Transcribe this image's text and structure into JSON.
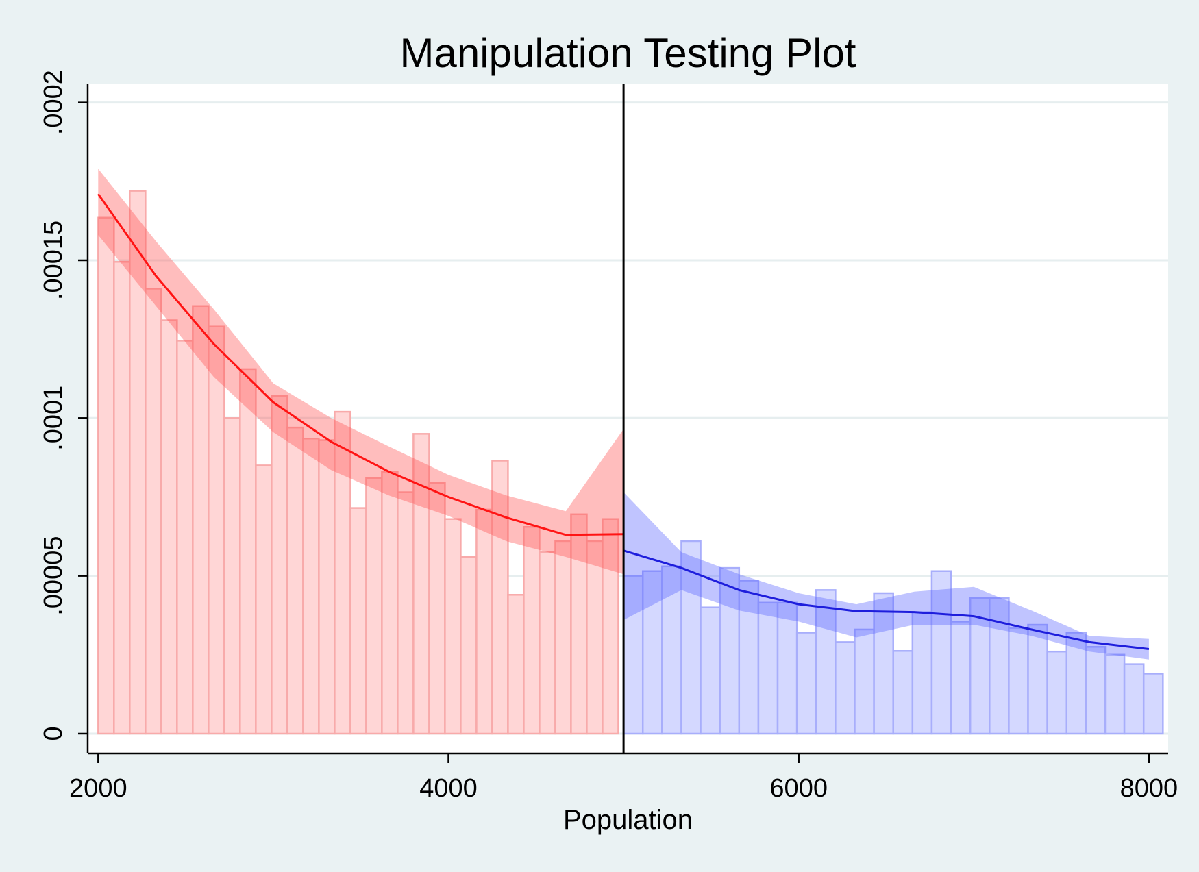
{
  "chart_data": {
    "type": "bar",
    "title": "Manipulation Testing Plot",
    "xlabel": "Population",
    "ylabel": "",
    "xlim": [
      1940,
      8110
    ],
    "ylim": [
      -6.3e-06,
      0.000206
    ],
    "x_ticks": [
      2000,
      4000,
      6000,
      8000
    ],
    "x_tick_labels": [
      "2000",
      "4000",
      "6000",
      "8000"
    ],
    "y_ticks": [
      0,
      5e-05,
      0.0001,
      0.00015,
      0.0002
    ],
    "y_tick_labels": [
      "0",
      ".00005",
      ".0001",
      ".00015",
      ".0002"
    ],
    "grid": true,
    "cutoff": 5000,
    "colors": {
      "left_bar_fill": "#ffd6d6",
      "left_bar_stroke": "#f8aaaa",
      "left_band": "#ff5252",
      "left_line": "#ff1414",
      "right_bar_fill": "#d4d8ff",
      "right_bar_stroke": "#a8aefb",
      "right_band": "#5a65ff",
      "right_line": "#1e1edc",
      "cutoff_line": "#000000"
    },
    "series": [
      {
        "side": "left",
        "bin_width": 90,
        "bins": [
          {
            "x0": 2000,
            "value": 0.0001635
          },
          {
            "x0": 2090,
            "value": 0.0001495
          },
          {
            "x0": 2180,
            "value": 0.000172
          },
          {
            "x0": 2270,
            "value": 0.000141
          },
          {
            "x0": 2360,
            "value": 0.000131
          },
          {
            "x0": 2450,
            "value": 0.0001245
          },
          {
            "x0": 2540,
            "value": 0.0001355
          },
          {
            "x0": 2630,
            "value": 0.000129
          },
          {
            "x0": 2720,
            "value": 0.0001
          },
          {
            "x0": 2810,
            "value": 0.0001155
          },
          {
            "x0": 2900,
            "value": 8.5e-05
          },
          {
            "x0": 2990,
            "value": 0.000107
          },
          {
            "x0": 3080,
            "value": 9.7e-05
          },
          {
            "x0": 3170,
            "value": 9.35e-05
          },
          {
            "x0": 3260,
            "value": 9.3e-05
          },
          {
            "x0": 3350,
            "value": 0.000102
          },
          {
            "x0": 3440,
            "value": 7.15e-05
          },
          {
            "x0": 3530,
            "value": 8.1e-05
          },
          {
            "x0": 3620,
            "value": 8.3e-05
          },
          {
            "x0": 3710,
            "value": 7.65e-05
          },
          {
            "x0": 3800,
            "value": 9.5e-05
          },
          {
            "x0": 3890,
            "value": 7.95e-05
          },
          {
            "x0": 3980,
            "value": 6.8e-05
          },
          {
            "x0": 4070,
            "value": 5.6e-05
          },
          {
            "x0": 4160,
            "value": 7.1e-05
          },
          {
            "x0": 4250,
            "value": 8.65e-05
          },
          {
            "x0": 4340,
            "value": 4.4e-05
          },
          {
            "x0": 4430,
            "value": 6.55e-05
          },
          {
            "x0": 4520,
            "value": 5.75e-05
          },
          {
            "x0": 4610,
            "value": 6.1e-05
          },
          {
            "x0": 4700,
            "value": 6.95e-05
          },
          {
            "x0": 4790,
            "value": 6.1e-05
          },
          {
            "x0": 4880,
            "value": 6.8e-05
          }
        ],
        "fit": {
          "x": [
            2000,
            2330,
            2660,
            3000,
            3330,
            3660,
            4000,
            4330,
            4670,
            5000
          ],
          "y": [
            0.000171,
            0.000145,
            0.0001235,
            0.000105,
            9.25e-05,
            8.3e-05,
            7.5e-05,
            6.85e-05,
            6.3e-05,
            6.32e-05
          ],
          "ci_low": [
            0.000158,
            0.0001355,
            0.000113,
            9.55e-05,
            8.35e-05,
            7.55e-05,
            6.9e-05,
            6.1e-05,
            5.6e-05,
            5.05e-05
          ],
          "ci_high": [
            0.000179,
            0.000156,
            0.0001345,
            0.000111,
            0.0001,
            9.1e-05,
            8.2e-05,
            7.55e-05,
            7.05e-05,
            9.65e-05
          ]
        }
      },
      {
        "side": "right",
        "bin_width": 110,
        "bins": [
          {
            "x0": 5000,
            "value": 5e-05
          },
          {
            "x0": 5110,
            "value": 5.15e-05
          },
          {
            "x0": 5220,
            "value": 5.3e-05
          },
          {
            "x0": 5330,
            "value": 6.1e-05
          },
          {
            "x0": 5440,
            "value": 4e-05
          },
          {
            "x0": 5550,
            "value": 5.25e-05
          },
          {
            "x0": 5660,
            "value": 4.85e-05
          },
          {
            "x0": 5770,
            "value": 4.15e-05
          },
          {
            "x0": 5880,
            "value": 4.15e-05
          },
          {
            "x0": 5990,
            "value": 3.2e-05
          },
          {
            "x0": 6100,
            "value": 4.55e-05
          },
          {
            "x0": 6210,
            "value": 2.9e-05
          },
          {
            "x0": 6320,
            "value": 3.3e-05
          },
          {
            "x0": 6430,
            "value": 4.45e-05
          },
          {
            "x0": 6540,
            "value": 2.62e-05
          },
          {
            "x0": 6650,
            "value": 3.85e-05
          },
          {
            "x0": 6760,
            "value": 5.15e-05
          },
          {
            "x0": 6870,
            "value": 3.55e-05
          },
          {
            "x0": 6980,
            "value": 4.3e-05
          },
          {
            "x0": 7090,
            "value": 4.3e-05
          },
          {
            "x0": 7200,
            "value": 3.35e-05
          },
          {
            "x0": 7310,
            "value": 3.45e-05
          },
          {
            "x0": 7420,
            "value": 2.6e-05
          },
          {
            "x0": 7530,
            "value": 3.2e-05
          },
          {
            "x0": 7640,
            "value": 2.75e-05
          },
          {
            "x0": 7750,
            "value": 2.5e-05
          },
          {
            "x0": 7860,
            "value": 2.2e-05
          },
          {
            "x0": 7970,
            "value": 1.9e-05
          }
        ],
        "fit": {
          "x": [
            5000,
            5330,
            5660,
            6000,
            6330,
            6660,
            7000,
            7330,
            7660,
            8000
          ],
          "y": [
            5.8e-05,
            5.25e-05,
            4.55e-05,
            4.1e-05,
            3.88e-05,
            3.85e-05,
            3.72e-05,
            3.3e-05,
            2.9e-05,
            2.68e-05
          ],
          "ci_low": [
            3.6e-05,
            4.55e-05,
            3.9e-05,
            3.55e-05,
            3.05e-05,
            3.45e-05,
            3.45e-05,
            3.1e-05,
            2.6e-05,
            2.35e-05
          ],
          "ci_high": [
            7.65e-05,
            5.75e-05,
            5.05e-05,
            4.45e-05,
            4.1e-05,
            4.5e-05,
            4.65e-05,
            3.9e-05,
            3.1e-05,
            3e-05
          ]
        }
      }
    ]
  }
}
